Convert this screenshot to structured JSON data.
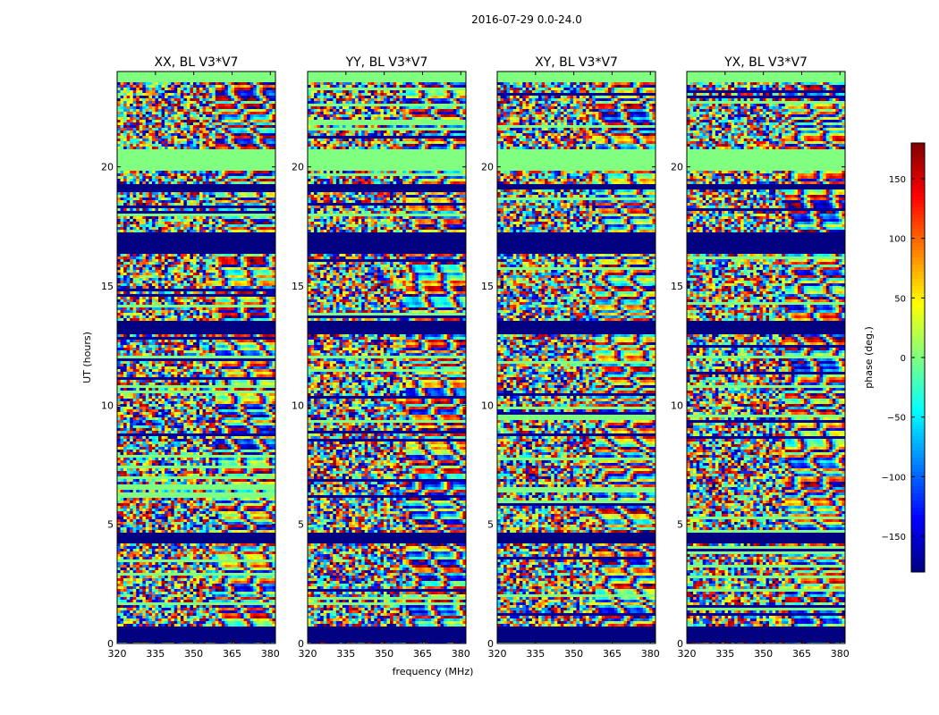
{
  "chart_data": {
    "type": "heatmap",
    "suptitle": "2016-07-29 0.0-24.0",
    "xlabel": "frequency (MHz)",
    "ylabel": "UT (hours)",
    "xlim": [
      320,
      382
    ],
    "ylim": [
      0,
      24
    ],
    "x_ticks": [
      "320",
      "335",
      "350",
      "365",
      "380"
    ],
    "y_ticks": [
      "0",
      "5",
      "10",
      "15",
      "20"
    ],
    "x_tick_values": [
      320,
      335,
      350,
      365,
      380
    ],
    "y_tick_values": [
      0,
      5,
      10,
      15,
      20
    ],
    "colorbar": {
      "label": "phase (deg.)",
      "range": [
        -180,
        180
      ],
      "colormap": "jet",
      "ticks": [
        "−150",
        "−100",
        "−50",
        "0",
        "50",
        "100",
        "150"
      ],
      "tick_values": [
        -150,
        -100,
        -50,
        0,
        50,
        100,
        150
      ]
    },
    "panels": [
      {
        "title": "XX, BL V3*V7",
        "seed": 11
      },
      {
        "title": "YY, BL V3*V7",
        "seed": 23
      },
      {
        "title": "XY, BL V3*V7",
        "seed": 37
      },
      {
        "title": "YX, BL V3*V7",
        "seed": 51
      }
    ],
    "flagged_intervals_hours": [
      [
        0,
        0.7
      ],
      [
        4.2,
        4.6
      ],
      [
        13.0,
        13.5
      ],
      [
        16.3,
        17.3
      ],
      [
        19.0,
        19.3
      ]
    ],
    "constant_phase_intervals_hours": [
      [
        19.8,
        20.7
      ],
      [
        23.5,
        24.0
      ]
    ]
  }
}
